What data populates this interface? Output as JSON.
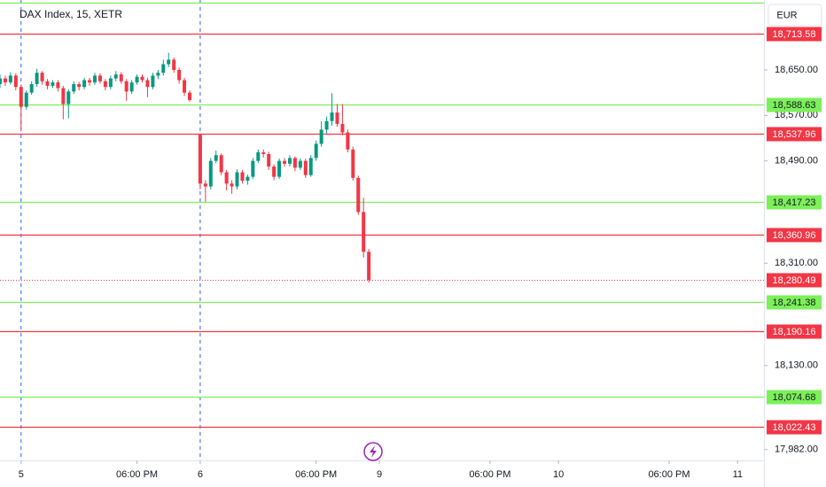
{
  "chart_data": {
    "type": "candlestick",
    "title": "DAX Index, 15, XETR",
    "currency": "EUR",
    "up_color": "#089981",
    "down_color": "#f23645",
    "x": [
      -4,
      -3,
      -2,
      -1,
      0,
      1,
      2,
      3,
      4,
      5,
      6,
      7,
      8,
      9,
      10,
      11,
      12,
      13,
      14,
      15,
      16,
      17,
      18,
      19,
      20,
      21,
      22,
      23,
      24,
      25,
      26,
      27,
      28,
      29,
      30,
      31,
      32,
      34,
      35,
      36,
      37,
      38,
      39,
      40,
      41,
      42,
      43,
      44,
      45,
      46,
      47,
      48,
      49,
      50,
      51,
      52,
      53,
      54,
      55,
      56,
      57,
      58,
      59,
      60,
      61,
      62,
      63,
      64,
      65,
      66
    ],
    "open": [
      18625,
      18635,
      18628,
      18640,
      18620,
      18585,
      18610,
      18625,
      18645,
      18630,
      18622,
      18628,
      18618,
      18590,
      18612,
      18625,
      18620,
      18632,
      18628,
      18640,
      18630,
      18620,
      18635,
      18642,
      18630,
      18612,
      18628,
      18638,
      18632,
      18620,
      18640,
      18645,
      18660,
      18668,
      18650,
      18632,
      18610,
      18536,
      18450,
      18445,
      18490,
      18500,
      18470,
      18450,
      18445,
      18470,
      18455,
      18462,
      18490,
      18505,
      18502,
      18480,
      18462,
      18490,
      18485,
      18495,
      18478,
      18490,
      18465,
      18495,
      18520,
      18545,
      18560,
      18575,
      18555,
      18540,
      18510,
      18460,
      18400,
      18330
    ],
    "high": [
      18642,
      18640,
      18646,
      18644,
      18624,
      18614,
      18630,
      18652,
      18648,
      18634,
      18632,
      18632,
      18622,
      18616,
      18630,
      18629,
      18636,
      18636,
      18645,
      18644,
      18634,
      18640,
      18648,
      18646,
      18634,
      18632,
      18642,
      18642,
      18636,
      18645,
      18650,
      18668,
      18680,
      18672,
      18654,
      18636,
      18614,
      18538,
      18456,
      18495,
      18508,
      18503,
      18474,
      18456,
      18475,
      18474,
      18466,
      18495,
      18510,
      18510,
      18506,
      18484,
      18494,
      18495,
      18500,
      18498,
      18494,
      18494,
      18500,
      18526,
      18560,
      18568,
      18609,
      18590,
      18590,
      18545,
      18515,
      18464,
      18425,
      18335
    ],
    "low": [
      18618,
      18622,
      18624,
      18614,
      18543,
      18580,
      18606,
      18620,
      18624,
      18616,
      18618,
      18612,
      18563,
      18565,
      18608,
      18614,
      18616,
      18622,
      18624,
      18626,
      18614,
      18616,
      18630,
      18626,
      18596,
      18608,
      18624,
      18628,
      18602,
      18616,
      18634,
      18640,
      18655,
      18645,
      18626,
      18604,
      18594,
      18440,
      18418,
      18440,
      18486,
      18465,
      18438,
      18432,
      18440,
      18450,
      18448,
      18458,
      18486,
      18496,
      18474,
      18456,
      18458,
      18480,
      18480,
      18472,
      18474,
      18460,
      18462,
      18490,
      18515,
      18538,
      18552,
      18550,
      18535,
      18505,
      18455,
      18395,
      18320,
      18276
    ],
    "close": [
      18635,
      18628,
      18640,
      18620,
      18585,
      18610,
      18625,
      18645,
      18630,
      18622,
      18628,
      18618,
      18590,
      18612,
      18625,
      18620,
      18632,
      18628,
      18640,
      18630,
      18620,
      18635,
      18642,
      18630,
      18612,
      18628,
      18638,
      18632,
      18620,
      18640,
      18645,
      18660,
      18668,
      18650,
      18632,
      18610,
      18597,
      18450,
      18445,
      18490,
      18500,
      18470,
      18450,
      18445,
      18470,
      18455,
      18462,
      18490,
      18505,
      18502,
      18480,
      18462,
      18490,
      18485,
      18495,
      18478,
      18490,
      18465,
      18495,
      18520,
      18545,
      18560,
      18575,
      18555,
      18540,
      18510,
      18460,
      18400,
      18330,
      18280.49
    ],
    "xlim": [
      -4,
      141
    ],
    "ylim": [
      17963,
      18773
    ],
    "xticks": [
      {
        "value": 0,
        "label": "5"
      },
      {
        "value": 22,
        "label": "06:00 PM"
      },
      {
        "value": 34,
        "label": "6"
      },
      {
        "value": 56,
        "label": "06:00 PM"
      },
      {
        "value": 68,
        "label": "9"
      },
      {
        "value": 89,
        "label": "06:00 PM"
      },
      {
        "value": 102,
        "label": "10"
      },
      {
        "value": 123,
        "label": "06:00 PM"
      },
      {
        "value": 136,
        "label": "11"
      }
    ],
    "yticks": [
      {
        "value": 18650,
        "label": "18,650.00"
      },
      {
        "value": 18570,
        "label": "18,570.00"
      },
      {
        "value": 18490,
        "label": "18,490.00"
      },
      {
        "value": 18310,
        "label": "18,310.00"
      },
      {
        "value": 18130,
        "label": "18,130.00"
      },
      {
        "value": 17982,
        "label": "17,982.00"
      }
    ],
    "session_breaks": [
      0,
      34
    ],
    "levels": [
      {
        "value": 18768,
        "color": "#7cf05a"
      },
      {
        "value": 18713.58,
        "label": "18,713.58",
        "color": "#f23645"
      },
      {
        "value": 18588.63,
        "label": "18,588.63",
        "color": "#7cf05a"
      },
      {
        "value": 18537.96,
        "label": "18,537.96",
        "color": "#f23645"
      },
      {
        "value": 18417.23,
        "label": "18,417.23",
        "color": "#7cf05a"
      },
      {
        "value": 18360.96,
        "label": "18,360.96",
        "color": "#f23645"
      },
      {
        "value": 18241.38,
        "label": "18,241.38",
        "color": "#7cf05a"
      },
      {
        "value": 18190.16,
        "label": "18,190.16",
        "color": "#f23645"
      },
      {
        "value": 18074.68,
        "label": "18,074.68",
        "color": "#7cf05a"
      },
      {
        "value": 18022.43,
        "label": "18,022.43",
        "color": "#f23645"
      }
    ],
    "last_price": {
      "value": 18280.49,
      "label": "18,280.49",
      "color": "#f23645"
    }
  }
}
